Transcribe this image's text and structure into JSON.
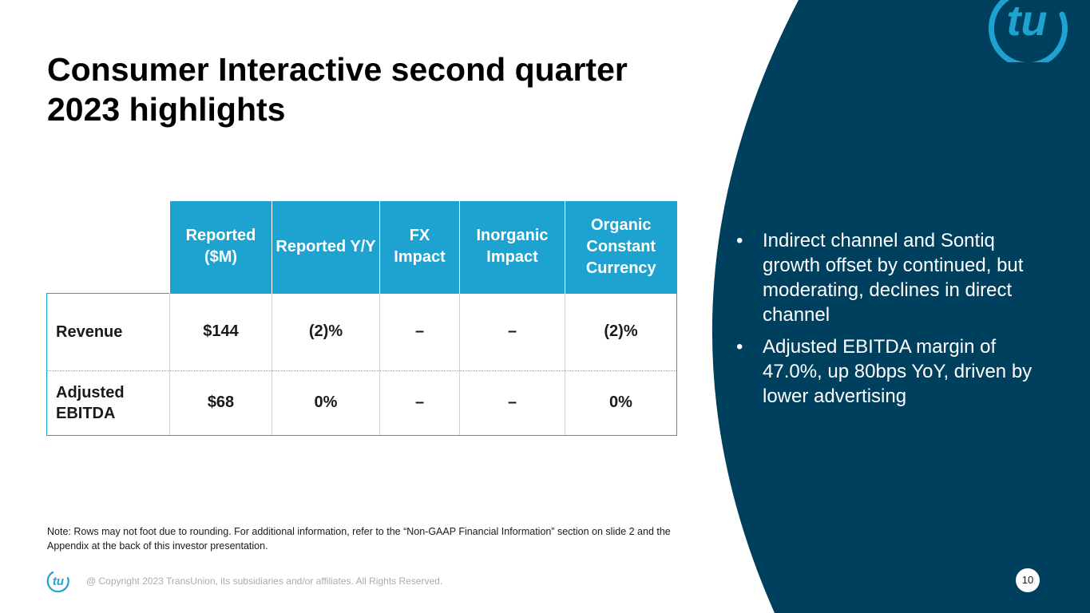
{
  "slide": {
    "title": "Consumer Interactive second quarter 2023 highlights",
    "page_number": "10",
    "copyright": "@ Copyright 2023 TransUnion, its subsidiaries and/or affiliates.  All Rights Reserved.",
    "note": "Note: Rows may not foot due to rounding. For additional information, refer to the “Non-GAAP Financial Information” section on slide 2 and the Appendix at the back of this investor presentation."
  },
  "brand": {
    "logo_text": "tu",
    "primary_color": "#1ea2cf",
    "dark_color": "#00405f"
  },
  "table": {
    "headers": [
      "Reported ($M)",
      "Reported Y/Y",
      "FX Impact",
      "Inorganic Impact",
      "Organic Constant Currency"
    ],
    "rows": [
      {
        "label": "Revenue",
        "values": [
          "$144",
          "(2)%",
          "–",
          "–",
          "(2)%"
        ]
      },
      {
        "label": "Adjusted EBITDA",
        "values": [
          "$68",
          "0%",
          "–",
          "–",
          "0%"
        ]
      }
    ]
  },
  "bullets": [
    "Indirect channel and Sontiq growth offset by continued, but moderating, declines in direct channel",
    "Adjusted EBITDA margin of 47.0%, up 80bps YoY, driven by lower advertising"
  ],
  "bullet_glyph": "•"
}
